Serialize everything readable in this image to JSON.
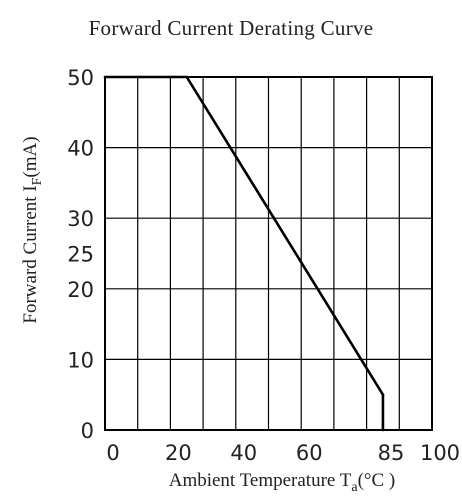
{
  "chart_data": {
    "type": "line",
    "title": "Forward Current Derating Curve",
    "xlabel": {
      "main": "Ambient Temperature T",
      "sub": "a",
      "unit": "(°C )"
    },
    "ylabel": {
      "main": "Forward Current   I",
      "sub": "F",
      "unit": "(mA)"
    },
    "xlim": [
      0,
      100
    ],
    "ylim": [
      0,
      50
    ],
    "grid": true,
    "x_gridlines": [
      0,
      10,
      20,
      30,
      40,
      50,
      60,
      70,
      80,
      90,
      100
    ],
    "y_gridlines": [
      0,
      10,
      20,
      30,
      40,
      50
    ],
    "x_ticks": [
      {
        "value": 0,
        "label": "0"
      },
      {
        "value": 20,
        "label": "20"
      },
      {
        "value": 40,
        "label": "40"
      },
      {
        "value": 60,
        "label": "60"
      },
      {
        "value": 85,
        "label": "85"
      },
      {
        "value": 100,
        "label": "100"
      }
    ],
    "y_ticks": [
      {
        "value": 0,
        "label": "0"
      },
      {
        "value": 10,
        "label": "10"
      },
      {
        "value": 20,
        "label": "20"
      },
      {
        "value": 25,
        "label": "25"
      },
      {
        "value": 30,
        "label": "30"
      },
      {
        "value": 40,
        "label": "40"
      },
      {
        "value": 50,
        "label": "50"
      }
    ],
    "series": [
      {
        "x": [
          0,
          25,
          85,
          85
        ],
        "y": [
          50,
          50,
          5,
          0
        ],
        "color": "#000000"
      }
    ]
  }
}
